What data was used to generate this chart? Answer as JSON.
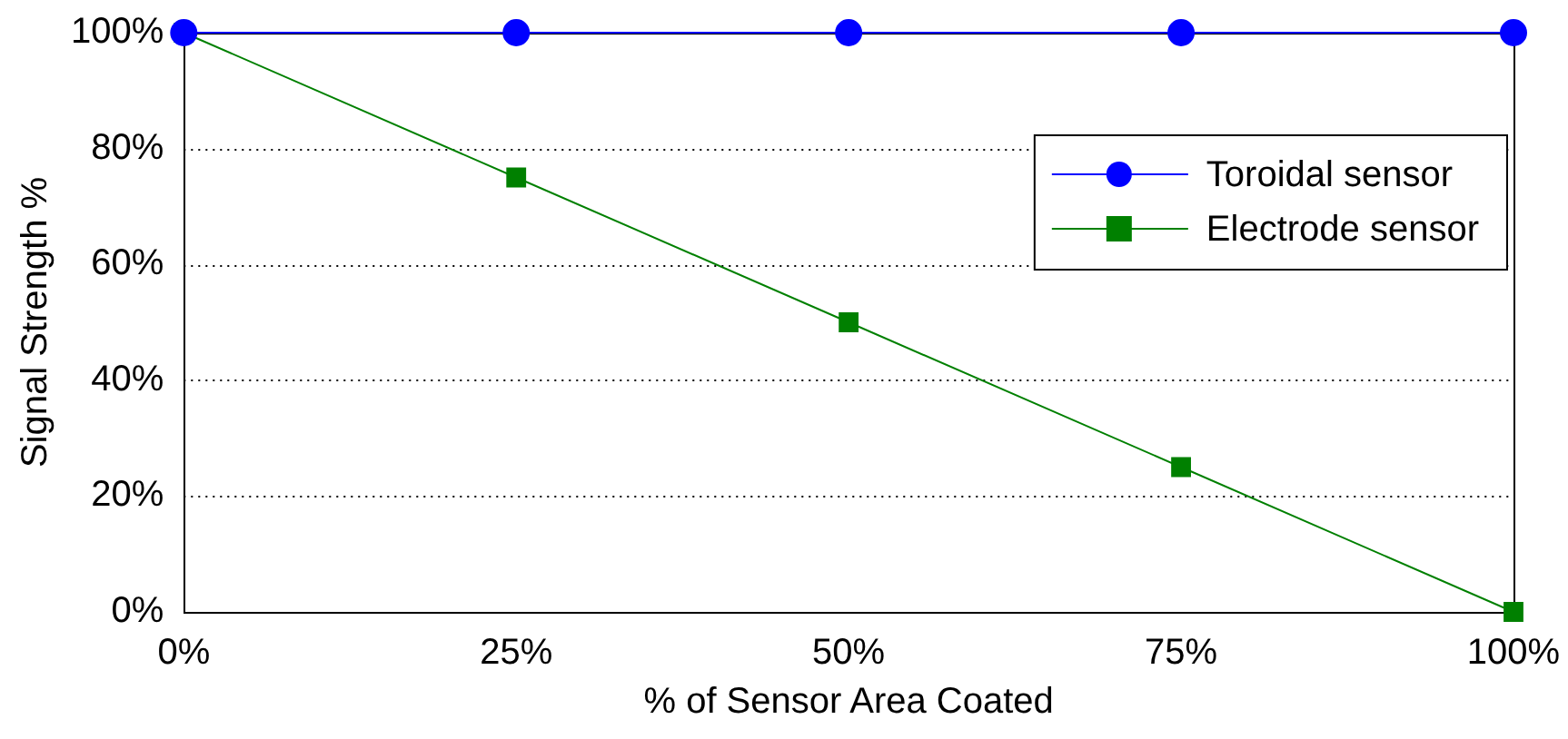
{
  "chart_data": {
    "type": "line",
    "xlabel": "% of Sensor Area Coated",
    "ylabel": "Signal Strength %",
    "x": [
      0,
      25,
      50,
      75,
      100
    ],
    "series": [
      {
        "name": "Toroidal sensor",
        "color": "#0000ff",
        "marker": "circle",
        "values": [
          100,
          100,
          100,
          100,
          100
        ]
      },
      {
        "name": "Electrode sensor",
        "color": "#008000",
        "marker": "square",
        "values": [
          100,
          75,
          50,
          25,
          0
        ]
      }
    ],
    "xlim": [
      0,
      100
    ],
    "xticks": [
      {
        "value": 0,
        "label": "0%"
      },
      {
        "value": 25,
        "label": "25%"
      },
      {
        "value": 50,
        "label": "50%"
      },
      {
        "value": 75,
        "label": "75%"
      },
      {
        "value": 100,
        "label": "100%"
      }
    ],
    "ylim": [
      0,
      100
    ],
    "yticks": [
      {
        "value": 0,
        "label": "0%"
      },
      {
        "value": 20,
        "label": "20%"
      },
      {
        "value": 40,
        "label": "40%"
      },
      {
        "value": 60,
        "label": "60%"
      },
      {
        "value": 80,
        "label": "80%"
      },
      {
        "value": 100,
        "label": "100%"
      }
    ],
    "grid": "y",
    "legend": "top right",
    "line_style": "solid"
  }
}
